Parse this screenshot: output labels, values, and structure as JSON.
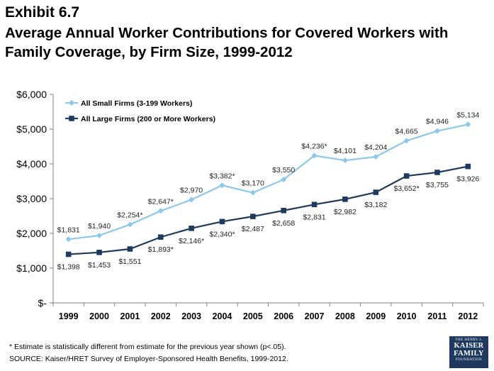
{
  "exhibit": "Exhibit 6.7",
  "title": "Average Annual Worker Contributions for Covered Workers with Family Coverage, by Firm Size, 1999-2012",
  "footnote": "* Estimate is statistically different from estimate for the previous year shown (p<.05).",
  "source": "SOURCE:  Kaiser/HRET Survey of Employer-Sponsored Health Benefits, 1999-2012.",
  "logo": {
    "line1": "THE HENRY J.",
    "line2": "KAISER",
    "line3": "FAMILY",
    "line4": "FOUNDATION"
  },
  "chart_data": {
    "type": "line",
    "title": "Average Annual Worker Contributions for Covered Workers with Family Coverage, by Firm Size, 1999-2012",
    "xlabel": "",
    "ylabel": "",
    "categories": [
      "1999",
      "2000",
      "2001",
      "2002",
      "2003",
      "2004",
      "2005",
      "2006",
      "2007",
      "2008",
      "2009",
      "2010",
      "2011",
      "2012"
    ],
    "ylim": [
      0,
      6000
    ],
    "yticks": [
      {
        "value": 0,
        "label": "$-"
      },
      {
        "value": 1000,
        "label": "$1,000"
      },
      {
        "value": 2000,
        "label": "$2,000"
      },
      {
        "value": 3000,
        "label": "$3,000"
      },
      {
        "value": 4000,
        "label": "$4,000"
      },
      {
        "value": 5000,
        "label": "$5,000"
      },
      {
        "value": 6000,
        "label": "$6,000"
      }
    ],
    "grid": false,
    "legend_position": "top-left",
    "series": [
      {
        "name": "All Small Firms (3-199 Workers)",
        "color": "#8cc8ec",
        "marker": "diamond",
        "values": [
          1831,
          1940,
          2254,
          2647,
          2970,
          3382,
          3170,
          3550,
          4236,
          4101,
          4204,
          4665,
          4946,
          5134
        ],
        "labels": [
          "$1,831",
          "$1,940",
          "$2,254*",
          "$2,647*",
          "$2,970",
          "$3,382*",
          "$3,170",
          "$3,550",
          "$4,236*",
          "$4,101",
          "$4,204",
          "$4,665",
          "$4,946",
          "$5,134"
        ]
      },
      {
        "name": "All Large Firms (200 or More Workers)",
        "color": "#1f3a5f",
        "marker": "square",
        "values": [
          1398,
          1453,
          1551,
          1893,
          2146,
          2340,
          2487,
          2658,
          2831,
          2982,
          3182,
          3652,
          3755,
          3926
        ],
        "labels": [
          "$1,398",
          "$1,453",
          "$1,551",
          "$1,893*",
          "$2,146*",
          "$2,340*",
          "$2,487",
          "$2,658",
          "$2,831",
          "$2,982",
          "$3,182",
          "$3,652*",
          "$3,755",
          "$3,926"
        ]
      }
    ]
  }
}
